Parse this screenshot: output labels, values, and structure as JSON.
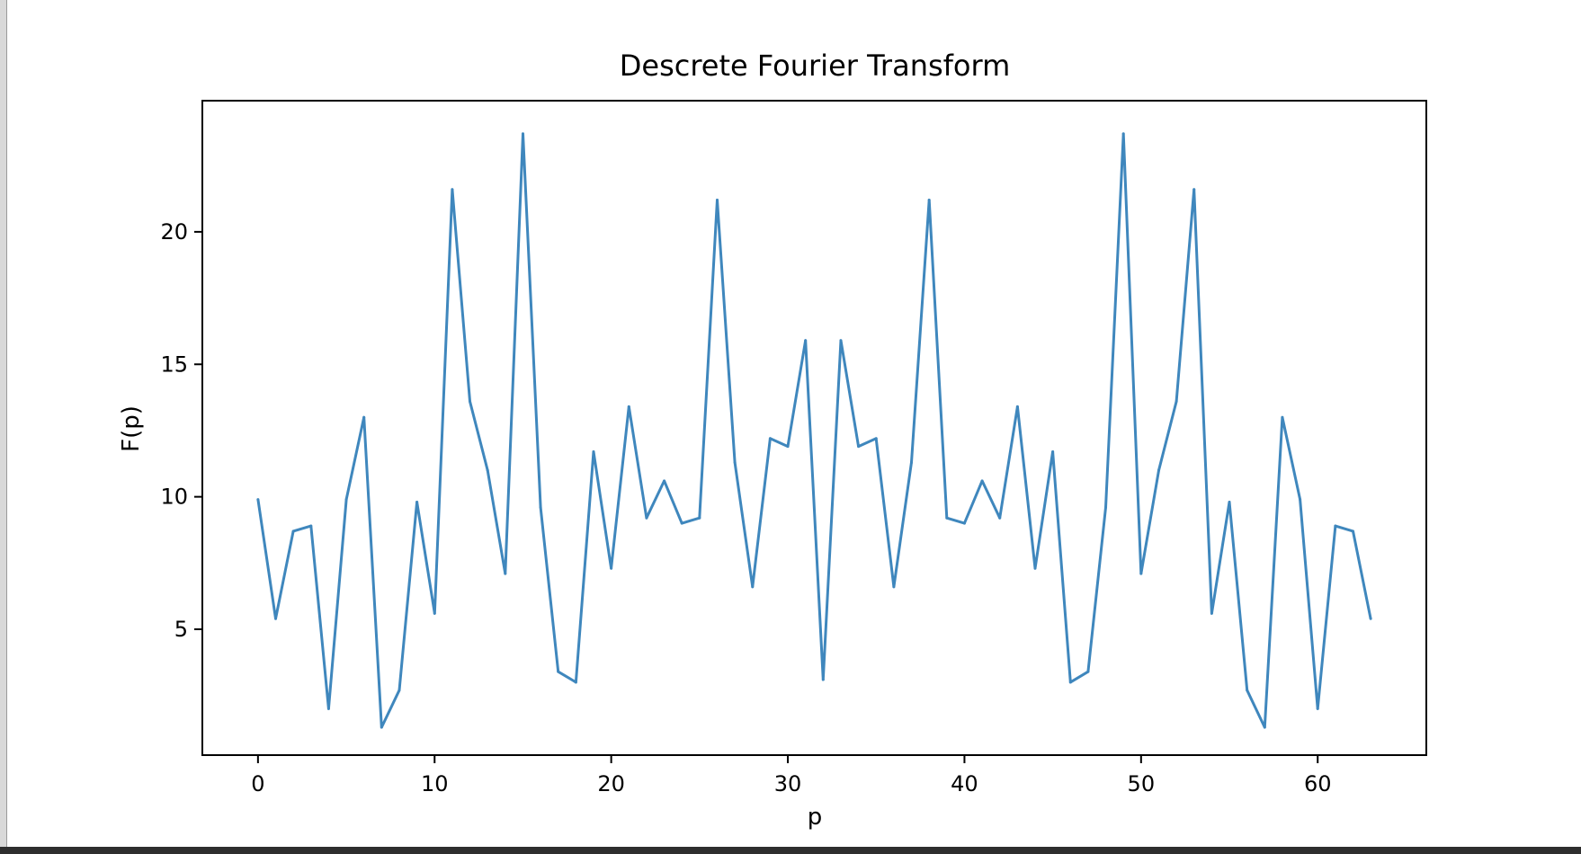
{
  "chart_data": {
    "type": "line",
    "title": "Descrete Fourier Transform",
    "xlabel": "p",
    "ylabel": "F(p)",
    "xlim": [
      -3.15,
      66.15
    ],
    "ylim": [
      0.25,
      24.95
    ],
    "xticks": [
      0,
      10,
      20,
      30,
      40,
      50,
      60
    ],
    "yticks": [
      5,
      10,
      15,
      20
    ],
    "grid": false,
    "series": [
      {
        "color": "#3f87bd",
        "x": [
          0,
          1,
          2,
          3,
          4,
          5,
          6,
          7,
          8,
          9,
          10,
          11,
          12,
          13,
          14,
          15,
          16,
          17,
          18,
          19,
          20,
          21,
          22,
          23,
          24,
          25,
          26,
          27,
          28,
          29,
          30,
          31,
          32,
          33,
          34,
          35,
          36,
          37,
          38,
          39,
          40,
          41,
          42,
          43,
          44,
          45,
          46,
          47,
          48,
          49,
          50,
          51,
          52,
          53,
          54,
          55,
          56,
          57,
          58,
          59,
          60,
          61,
          62,
          63
        ],
        "values": [
          9.9,
          5.4,
          8.7,
          8.9,
          2.0,
          9.9,
          13.0,
          1.3,
          2.7,
          9.8,
          5.6,
          21.6,
          13.6,
          11.0,
          7.1,
          23.7,
          9.6,
          3.4,
          3.0,
          11.7,
          7.3,
          13.4,
          9.2,
          10.6,
          9.0,
          9.2,
          21.2,
          11.3,
          6.6,
          12.2,
          11.9,
          15.9,
          3.1,
          15.9,
          11.9,
          12.2,
          6.6,
          11.3,
          21.2,
          9.2,
          9.0,
          10.6,
          9.2,
          13.4,
          7.3,
          11.7,
          3.0,
          3.4,
          9.6,
          23.7,
          7.1,
          11.0,
          13.6,
          21.6,
          5.6,
          9.8,
          2.7,
          1.3,
          13.0,
          9.9,
          2.0,
          8.9,
          8.7,
          5.4
        ]
      }
    ]
  }
}
